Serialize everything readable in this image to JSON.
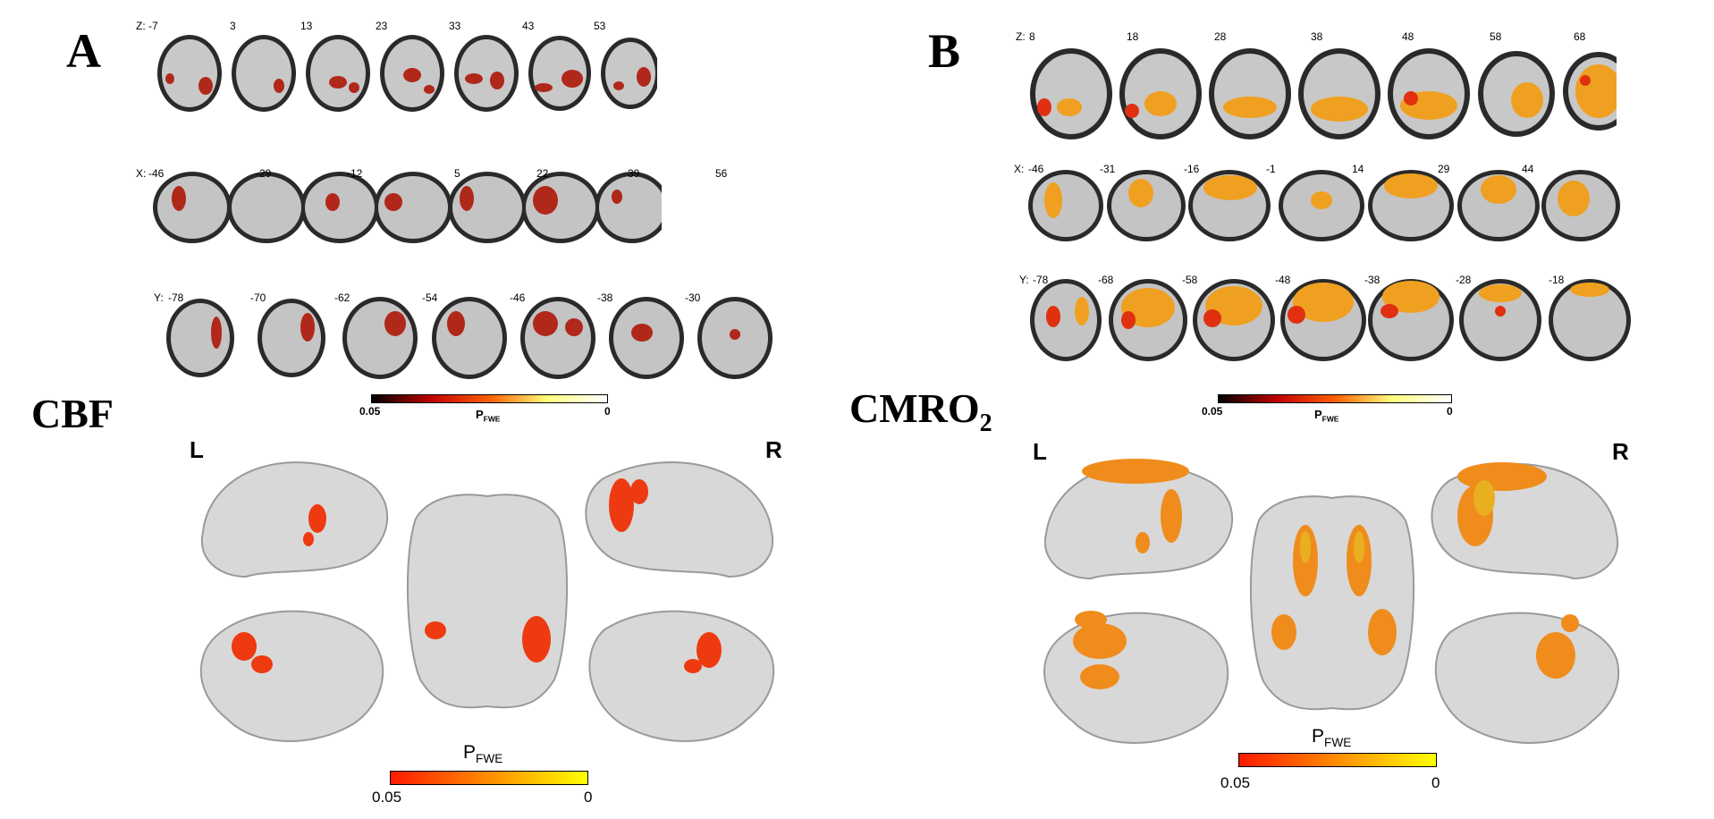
{
  "panels": [
    {
      "letter": "A",
      "measure": "CBF",
      "measure_sub": "",
      "rows": [
        {
          "axis_prefix": "Z: ",
          "labels": [
            "-7",
            "3",
            "13",
            "23",
            "33",
            "43",
            "53"
          ]
        },
        {
          "axis_prefix": "X: ",
          "labels": [
            "-46",
            "-29",
            "-12",
            "5",
            "22",
            "39",
            "56"
          ]
        },
        {
          "axis_prefix": "Y: ",
          "labels": [
            "-78",
            "-70",
            "-62",
            "-54",
            "-46",
            "-38",
            "-30"
          ]
        }
      ],
      "slice_colorbar": {
        "label": "P",
        "label_sub": "FWE",
        "min": "0.05",
        "max": "0",
        "colors": [
          "#000000",
          "#c00000",
          "#ff6000",
          "#ffff80",
          "#ffffff"
        ]
      },
      "surface_colorbar": {
        "label": "P",
        "label_sub": "FWE",
        "min": "0.05",
        "max": "0",
        "colors": [
          "#ff1a00",
          "#ffff00"
        ]
      },
      "hemi_left": "L",
      "hemi_right": "R"
    },
    {
      "letter": "B",
      "measure": "CMRO",
      "measure_sub": "2",
      "rows": [
        {
          "axis_prefix": "Z: ",
          "labels": [
            "8",
            "18",
            "28",
            "38",
            "48",
            "58",
            "68"
          ]
        },
        {
          "axis_prefix": "X: ",
          "labels": [
            "-46",
            "-31",
            "-16",
            "-1",
            "14",
            "29",
            "44"
          ]
        },
        {
          "axis_prefix": "Y: ",
          "labels": [
            "-78",
            "-68",
            "-58",
            "-48",
            "-38",
            "-28",
            "-18"
          ]
        }
      ],
      "slice_colorbar": {
        "label": "P",
        "label_sub": "FWE",
        "min": "0.05",
        "max": "0",
        "colors": [
          "#000000",
          "#c00000",
          "#ff6000",
          "#ffff80",
          "#ffffff"
        ]
      },
      "surface_colorbar": {
        "label": "P",
        "label_sub": "FWE",
        "min": "0.05",
        "max": "0",
        "colors": [
          "#ff1a00",
          "#ffff00"
        ]
      },
      "hemi_left": "L",
      "hemi_right": "R"
    }
  ]
}
